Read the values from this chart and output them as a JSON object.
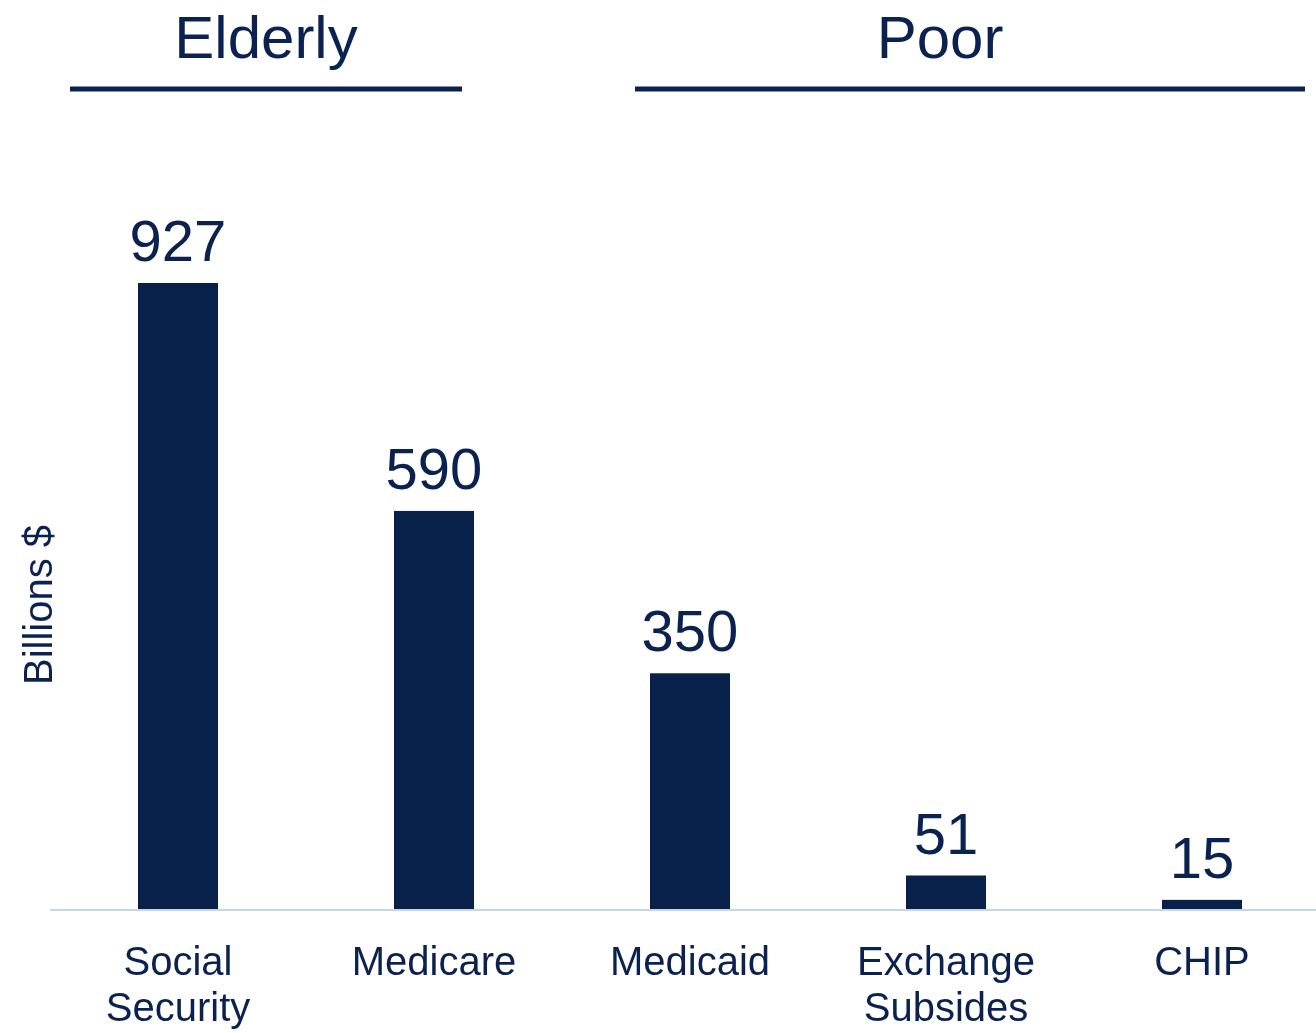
{
  "chart_data": {
    "type": "bar",
    "ylabel": "Billions $",
    "categories": [
      "Social Security",
      "Medicare",
      "Medicaid",
      "Exchange Subsides",
      "CHIP"
    ],
    "values": [
      927,
      590,
      350,
      51,
      15
    ],
    "color": "#08214a",
    "data_labels": true,
    "annotations": [
      "Elderly",
      "Poor"
    ]
  }
}
